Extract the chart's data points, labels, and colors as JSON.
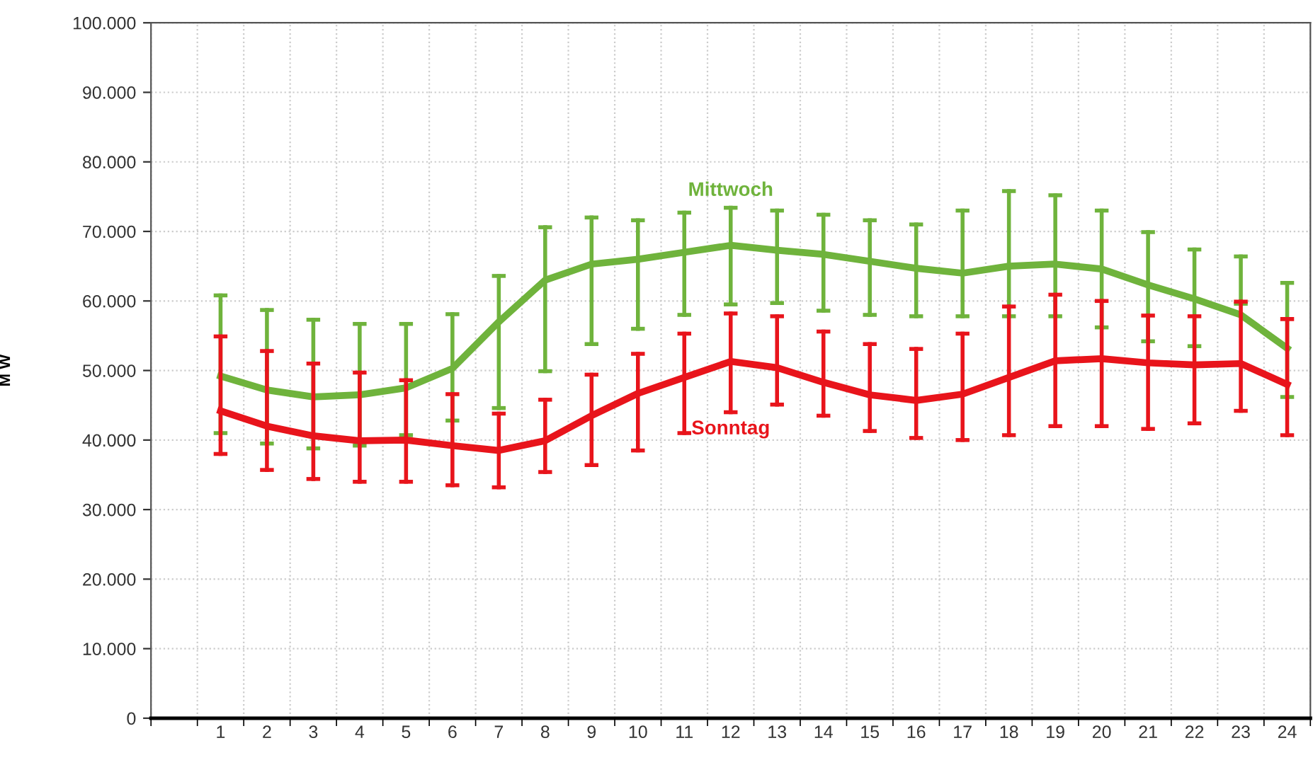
{
  "chart_data": {
    "type": "line",
    "ylabel": "M W",
    "categories": [
      null,
      "1",
      "2",
      "3",
      "4",
      "5",
      "6",
      "7",
      "8",
      "9",
      "10",
      "11",
      "12",
      "13",
      "14",
      "15",
      "16",
      "17",
      "18",
      "19",
      "20",
      "21",
      "22",
      "23",
      "24"
    ],
    "series": [
      {
        "name": "Mittwoch",
        "color": "#6fb33c",
        "values": [
          null,
          49200,
          47200,
          46200,
          46500,
          47500,
          50300,
          57000,
          63000,
          65300,
          66000,
          67000,
          68000,
          67300,
          66700,
          65700,
          64700,
          64000,
          65000,
          65300,
          64600,
          62300,
          60300,
          58000,
          53200
        ],
        "errors": [
          null,
          [
            41000,
            60800
          ],
          [
            39500,
            58700
          ],
          [
            38800,
            57300
          ],
          [
            39200,
            56700
          ],
          [
            40700,
            56700
          ],
          [
            42800,
            58100
          ],
          [
            44600,
            63600
          ],
          [
            49900,
            70600
          ],
          [
            53800,
            72000
          ],
          [
            56000,
            71600
          ],
          [
            58000,
            72700
          ],
          [
            59500,
            73400
          ],
          [
            59700,
            73000
          ],
          [
            58600,
            72400
          ],
          [
            58000,
            71600
          ],
          [
            57800,
            71000
          ],
          [
            57800,
            73000
          ],
          [
            57800,
            75800
          ],
          [
            57800,
            75200
          ],
          [
            56200,
            73000
          ],
          [
            54200,
            69900
          ],
          [
            53500,
            67400
          ],
          [
            59600,
            66400
          ],
          [
            46200,
            62600
          ]
        ]
      },
      {
        "name": "Sonntag",
        "color": "#e8141b",
        "values": [
          null,
          44200,
          42000,
          40600,
          39900,
          40000,
          39200,
          38500,
          39900,
          43500,
          46700,
          49000,
          51300,
          50400,
          48300,
          46500,
          45700,
          46600,
          49000,
          51400,
          51700,
          51100,
          50800,
          51000,
          48000
        ],
        "errors": [
          null,
          [
            38000,
            54900
          ],
          [
            35700,
            52800
          ],
          [
            34400,
            51000
          ],
          [
            34000,
            49700
          ],
          [
            34000,
            48600
          ],
          [
            33500,
            46600
          ],
          [
            33200,
            43800
          ],
          [
            35400,
            45800
          ],
          [
            36400,
            49400
          ],
          [
            38500,
            52400
          ],
          [
            41000,
            55300
          ],
          [
            44000,
            58200
          ],
          [
            45100,
            57800
          ],
          [
            43500,
            55600
          ],
          [
            41300,
            53800
          ],
          [
            40300,
            53100
          ],
          [
            40000,
            55300
          ],
          [
            40700,
            59200
          ],
          [
            42000,
            60900
          ],
          [
            42000,
            60000
          ],
          [
            41600,
            57900
          ],
          [
            42400,
            57800
          ],
          [
            44200,
            59900
          ],
          [
            40700,
            57400
          ]
        ]
      }
    ],
    "ylim": [
      0,
      100000
    ],
    "yticks": [
      0,
      {
        "value": 10000,
        "label": "10.000"
      },
      {
        "value": 20000,
        "label": "20.000"
      },
      {
        "value": 30000,
        "label": "30.000"
      },
      {
        "value": 40000,
        "label": "40.000"
      },
      {
        "value": 50000,
        "label": "50.000"
      },
      {
        "value": 60000,
        "label": "60.000"
      },
      {
        "value": 70000,
        "label": "70.000"
      },
      {
        "value": 80000,
        "label": "80.000"
      },
      {
        "value": 90000,
        "label": "90.000"
      },
      {
        "value": 100000,
        "label": "100.000"
      }
    ],
    "grid": true,
    "legend": false,
    "marker": "none",
    "line_style": "solid"
  }
}
